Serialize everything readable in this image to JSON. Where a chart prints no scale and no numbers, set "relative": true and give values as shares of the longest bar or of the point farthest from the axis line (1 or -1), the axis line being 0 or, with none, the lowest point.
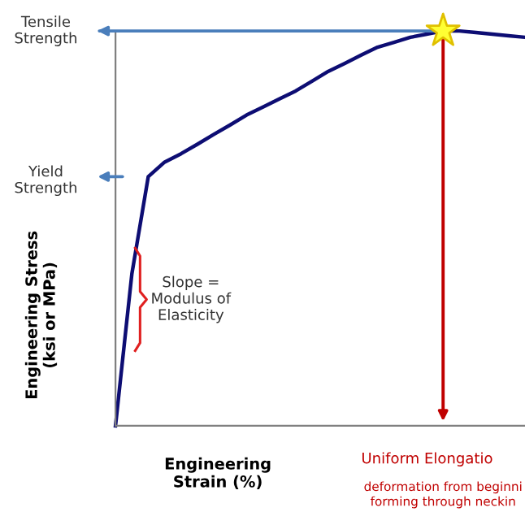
{
  "chart_data": {
    "type": "line",
    "relative": true,
    "xlabel": "Engineering\nStrain (%)",
    "ylabel": "Engineering Stress\n(ksi or MPa)",
    "legend": false,
    "marker": "none",
    "line_style": "solid",
    "categories": [
      null,
      null,
      null,
      null,
      null,
      null,
      null,
      null,
      null,
      null,
      null,
      null,
      null,
      null,
      null,
      null,
      null,
      null,
      null,
      null,
      null,
      null,
      null,
      null,
      null,
      null
    ],
    "series": [
      {
        "color": "#0d0d73",
        "values": [
          0,
          0.385,
          0.631,
          0.668,
          0.689,
          0.713,
          0.738,
          0.762,
          0.787,
          0.807,
          0.828,
          0.848,
          0.873,
          0.898,
          0.918,
          0.939,
          0.959,
          0.971,
          0.984,
          0.992,
          1.0,
          1.0,
          0.996,
          0.992,
          0.988,
          0.984
        ]
      }
    ],
    "ref_lines": [
      {
        "axis": "y",
        "value": 1.0,
        "label": "Tensile\nStrength",
        "color": "#4a7ebb"
      }
    ],
    "annotations": [
      "Yield\nStrength",
      "Slope =\nModulus of\nElasticity",
      "Uniform Elongatio",
      "deformation from beginni\nforming through neckin"
    ]
  }
}
